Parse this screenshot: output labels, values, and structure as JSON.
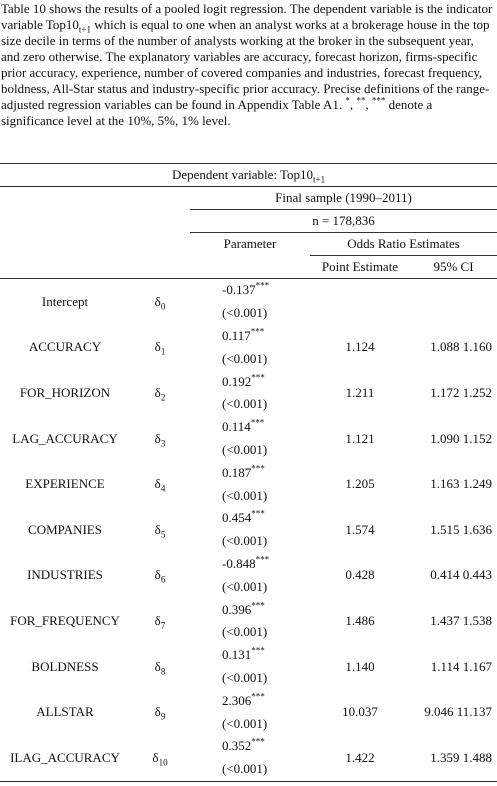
{
  "caption": [
    "Table 10 shows the results of a pooled logit regression. The dependent variable is the indicator variable Top10",
    "t+1",
    " which is equal to one when an analyst works at a brokerage house in the top size decile in terms of the number of analysts working at the broker in the subsequent year, and zero otherwise. The explanatory variables are accuracy, forecast horizon, firms-specific prior accuracy, experience, number of covered companies and industries, forecast frequency, boldness, All-Star status and industry-specific prior accuracy. Precise definitions of the range-adjusted regression variables can be found in Appendix Table A1. ",
    "*",
    ", ",
    "**",
    ", ",
    "***",
    " denote a significance level at the 10%, 5%, 1% level."
  ],
  "table": {
    "dependent": "Dependent variable: Top10",
    "dependent_sub": "t+1",
    "sample": "Final sample (1990–2011)",
    "n": "n = 178,836",
    "parameter": "Parameter",
    "odds": "Odds Ratio Estimates",
    "point": "Point Estimate",
    "ci": "95% CI",
    "rows": [
      {
        "name": "Intercept",
        "symbol": "δ",
        "sub": "0",
        "coef": "-0.137",
        "stars": "***",
        "p": "(<0.001)",
        "point": null,
        "ci_low": null,
        "ci_high": null
      },
      {
        "name": "ACCURACY",
        "symbol": "δ",
        "sub": "1",
        "coef": "0.117",
        "stars": "***",
        "p": "(<0.001)",
        "point": "1.124",
        "ci_low": "1.088",
        "ci_high": "1.160"
      },
      {
        "name": "FOR_HORIZON",
        "symbol": "δ",
        "sub": "2",
        "coef": "0.192",
        "stars": "***",
        "p": "(<0.001)",
        "point": "1.211",
        "ci_low": "1.172",
        "ci_high": "1.252"
      },
      {
        "name": "LAG_ACCURACY",
        "symbol": "δ",
        "sub": "3",
        "coef": "0.114",
        "stars": "***",
        "p": "(<0.001)",
        "point": "1.121",
        "ci_low": "1.090",
        "ci_high": "1.152"
      },
      {
        "name": "EXPERIENCE",
        "symbol": "δ",
        "sub": "4",
        "coef": "0.187",
        "stars": "***",
        "p": "(<0.001)",
        "point": "1.205",
        "ci_low": "1.163",
        "ci_high": "1.249"
      },
      {
        "name": "COMPANIES",
        "symbol": "δ",
        "sub": "5",
        "coef": "0.454",
        "stars": "***",
        "p": "(<0.001)",
        "point": "1.574",
        "ci_low": "1.515",
        "ci_high": "1.636"
      },
      {
        "name": "INDUSTRIES",
        "symbol": "δ",
        "sub": "6",
        "coef": "-0.848",
        "stars": "***",
        "p": "(<0.001)",
        "point": "0.428",
        "ci_low": "0.414",
        "ci_high": "0.443"
      },
      {
        "name": "FOR_FREQUENCY",
        "symbol": "δ",
        "sub": "7",
        "coef": "0.396",
        "stars": "***",
        "p": "(<0.001)",
        "point": "1.486",
        "ci_low": "1.437",
        "ci_high": "1.538"
      },
      {
        "name": "BOLDNESS",
        "symbol": "δ",
        "sub": "8",
        "coef": "0.131",
        "stars": "***",
        "p": "(<0.001)",
        "point": "1.140",
        "ci_low": "1.114",
        "ci_high": "1.167"
      },
      {
        "name": "ALLSTAR",
        "symbol": "δ",
        "sub": "9",
        "coef": "2.306",
        "stars": "***",
        "p": "(<0.001)",
        "point": "10.037",
        "ci_low": "9.046",
        "ci_high": "11.137"
      },
      {
        "name": "ILAG_ACCURACY",
        "symbol": "δ",
        "sub": "10",
        "coef": "0.352",
        "stars": "***",
        "p": "(<0.001)",
        "point": "1.422",
        "ci_low": "1.359",
        "ci_high": "1.488"
      }
    ]
  }
}
